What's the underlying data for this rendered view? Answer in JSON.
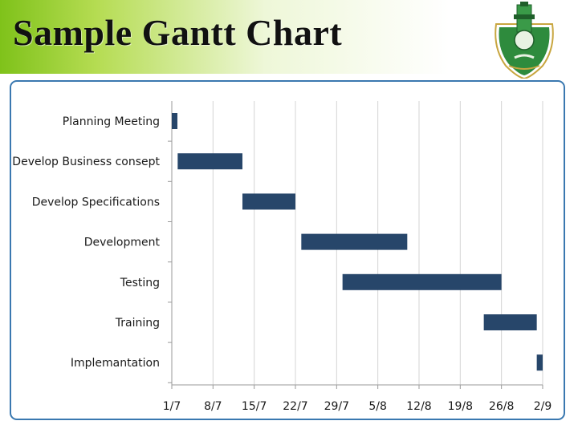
{
  "slide": {
    "title": "Sample Gantt Chart"
  },
  "logo": {
    "icon": "university-seal-icon",
    "accent": "#2e8b3d",
    "trim": "#c8a640"
  },
  "colors": {
    "title_band_start": "#7fc21a",
    "bar": "#27466a",
    "grid": "#d4d4d4",
    "frame": "#3a78b0"
  },
  "chart_data": {
    "type": "bar",
    "orientation": "horizontal-gantt",
    "title": "",
    "xlabel": "",
    "ylabel": "",
    "x_ticks": [
      "1/7",
      "8/7",
      "15/7",
      "22/7",
      "29/7",
      "5/8",
      "12/8",
      "19/8",
      "26/8",
      "2/9"
    ],
    "xlim": [
      "1/7",
      "2/9"
    ],
    "grid": "vertical",
    "series": [
      {
        "tasks": [
          {
            "label": "Planning Meeting",
            "start": "1/7",
            "end": "1/7"
          },
          {
            "label": "Develop Business consept",
            "start": "2/7",
            "end": "13/7"
          },
          {
            "label": "Develop Specifications",
            "start": "13/7",
            "end": "22/7"
          },
          {
            "label": "Development",
            "start": "23/7",
            "end": "10/8"
          },
          {
            "label": "Testing",
            "start": "30/7",
            "end": "26/8"
          },
          {
            "label": "Training",
            "start": "23/8",
            "end": "1/9"
          },
          {
            "label": "Implemantation",
            "start": "1/9",
            "end": "2/9"
          }
        ]
      }
    ]
  }
}
